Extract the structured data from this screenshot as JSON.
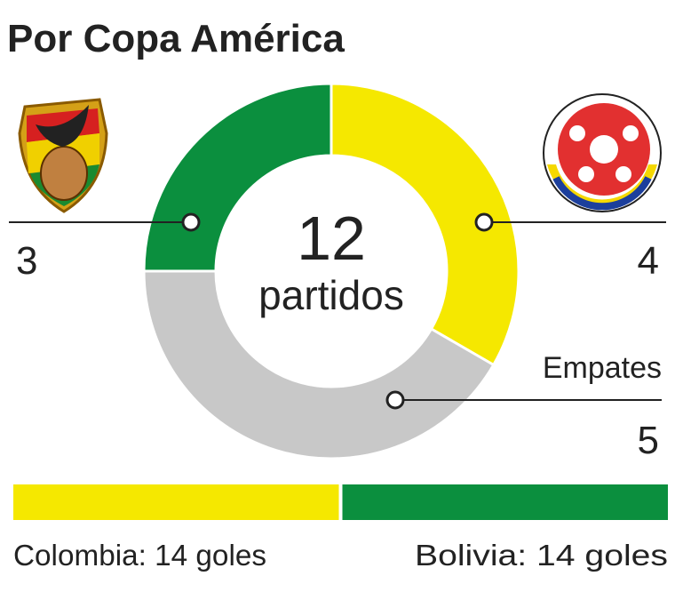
{
  "chart_data": [
    {
      "type": "donut",
      "title": "Por Copa América",
      "categories": [
        null,
        "Empates",
        null
      ],
      "values": [
        4,
        5,
        3
      ],
      "colors": [
        "#f5e800",
        "#c8c8c8",
        "#0b8f3e"
      ],
      "total": 12,
      "total_label": "partidos"
    },
    {
      "type": "bar",
      "orientation": "horizontal",
      "stacked": true,
      "values": [
        14,
        14
      ],
      "value_labels": [
        "Colombia: 14 goles",
        "Bolivia: 14 goles"
      ],
      "colors": [
        "#f5e800",
        "#0b8f3e"
      ],
      "xlim": [
        0,
        28
      ]
    }
  ]
}
